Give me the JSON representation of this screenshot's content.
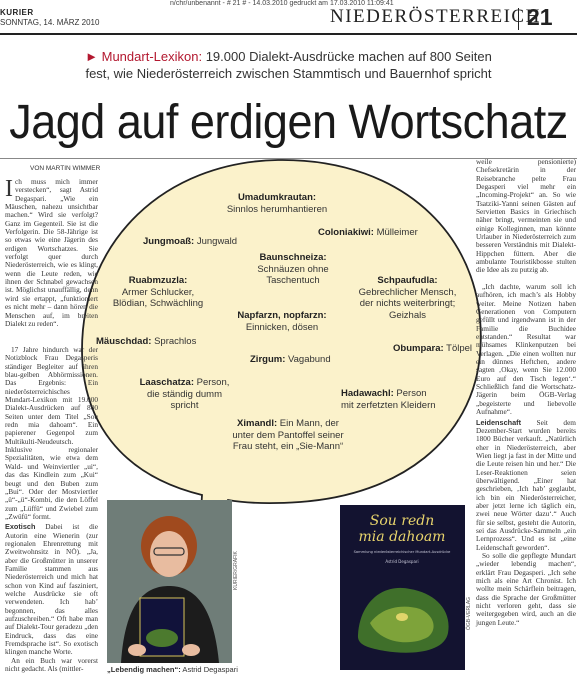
{
  "header": {
    "topline": "n/chr/unbenannt - # 21 # - 14.03.2010 gedruckt am 17.03.2010 11:09:41",
    "paper": "KURIER",
    "date": "SONNTAG, 14. MÄRZ 2010",
    "section": "NIEDERÖSTERREICH",
    "page": "21"
  },
  "kicker": {
    "arrow": "►",
    "keyword": "Mundart-Lexikon:",
    "line1_rest": " 19.000 Dialekt-Ausdrücke machen auf 800 Seiten",
    "line2": "fest, wie Niederösterreich zwischen Stammtisch und Bauernhof spricht"
  },
  "headline": "Jagd auf erdigen Wortschatz",
  "byline": "VON MARTIN WIMMER",
  "article": {
    "col1_drop": "I",
    "col1_text": "ch muss mich immer verstecken“, sagt Astrid Degaspari. „Wie ein Mäuschen, nahezu unsichtbar machen.“ Wird sie verfolgt? Ganz im Gegenteil. Sie ist die Verfolgerin. Die 58-Jährige ist so etwas wie eine Jägerin des erdigen Wortschatzes. Sie verfolgt quer durch Niederösterreich, wie es klingt, wenn die Leute reden, wie ihnen der Schnabel gewachsen ist. Möglichst unauffällig, denn wird sie ertappt, „funktioniert es nicht mehr – dann hören die Menschen auf, im breiten Dialekt zu reden“.",
    "col1b_text": "17 Jahre hindurch war der Notizblock Frau Degasperis ständiger Begleiter auf ihren blau-gelben Abhörmissionen. Das Ergebnis: Ein niederösterreichisches Mundart-Lexikon mit 19.000 Dialekt-Ausdrücken auf 800 Seiten unter dem Titel „Sou redn mia dahoam“. Ein papierener Gegenpol zum Multikulti-Neudeutsch. Inklusive regionaler Spezialitäten, wie etwa dem Wald- und Weinviertler „ui“, das das Kindlein zum „Kui“ beugt und den Buben zum „Bui“. Oder der Mostviertler „ü“-„ü“-Kombi, die den Löffel zum „Lüffü“ und Zwiebel zum „Zwüfü“ formt.",
    "col1c_lead": "Exotisch",
    "col1c_text": " Dabei ist die Autorin eine Wienerin (zur regionalen Ehrenrettung mit Zweitwohnsitz in NÖ). „Ja, aber die Großmütter in unserer Familie stammen aus Niederösterreich und mich hat schon von Kind auf fasziniert, welche Ausdrücke sie oft verwendeten. Ich hab’ begonnen, das alles aufzuschreiben.“ Oft habe man auf Dialekt-Tour geradezu „den Eindruck, dass das eine Fremdsprache ist“. So exotisch klingen manche Worte.",
    "col1d_text": "An ein Buch war vorerst nicht gedacht. Als (mittler-",
    "col3_text": "weile pensionierte) Chefsekretärin in der Reisebranche pelte Frau Degasperi viel mehr ein „Incoming-Projekt“ an. So wie Tsatziki-Yanni seinen Gästen auf Servietten Basics in Griechisch näher bringt, vermeinten sie und einige Kolleginnen, man könnte Urlauber in Niederösterreich zum besseren Verständnis mit Dialekt-Hippchen füttern. Aber die ambulante Touristikbosse stulten die Idee als zu putzig ab.",
    "col3b_text": "„Ich dachte, warum soll ich aufhören, ich mach’s als Hobby weiter. Meine Notizen haben Generationen von Computern gefüllt und irgendwann ist in der Familie die Buchidee entstanden.“ Resultat war mühsames Klinkenputzen bei Verlagen. „Die einen wollten nur ein dünnes Heftchen, andere sagten ‚Okay, wenn Sie 12.000 Euro auf den Tisch legen‘.“ Schließlich fand die Wortschatz-Jägerin beim ÖGB-Verlag „begeisterte und liebevolle Aufnahme“.",
    "col3c_lead": "Leidenschaft",
    "col3c_text": " Seit dem Dezember-Start wurden bereits 1800 Bücher verkauft. „Natürlich eher in Niederösterreich, aber Wien liegt ja fast in der Mitte und die Leute reisen hin und her.“ Die Leser-Reaktionen seien überwältigend. „Einer hat geschrieben, ‚Ich hab’ geglaubt, ich bin ein Niederösterreicher, aber jetzt lerne ich täglich ein, zwei neue Wörter dazu‘.“ Auch für sie selbst, gesteht die Autorin, sei das Ausdrücke-Sammeln „ein Lernprozess“. Und es ist „eine Leidenschaft geworden“.",
    "col3d_text": "So solle die gepflegte Mundart „wieder lebendig machen“, erklärt Frau Degasperi. „Ich sehe mich als eine Art Chronist. Ich wollte mein Schärflein beitragen, dass die Sprache der Großmütter nicht verloren geht, dass sie weitergegeben wird, auch an die jungen Leute.“"
  },
  "lexicon": [
    {
      "term": "Umadumkrautan:",
      "def": "Sinnlos herumhantieren"
    },
    {
      "term": "Jungmoaß:",
      "def": " Jungwald"
    },
    {
      "term": "Coloniakiwi:",
      "def": " Mülleimer"
    },
    {
      "term": "Baunschneiza:",
      "def": "Schnäuzen ohne Taschentuch"
    },
    {
      "term": "Ruabmzuzla:",
      "def": "Armer Schlucker, Blödian, Schwächling"
    },
    {
      "term": "Schpaufudla:",
      "def": "Gebrechlicher Mensch, der nichts weiterbringt; Geizhals"
    },
    {
      "term": "Napfarzn, nopfarzn:",
      "def": "Einnicken, dösen"
    },
    {
      "term": "Mäuschdad:",
      "def": " Sprachlos"
    },
    {
      "term": "Obumpara:",
      "def": " Tölpel"
    },
    {
      "term": "Zirgum:",
      "def": " Vagabund"
    },
    {
      "term": "Laaschatza:",
      "def": " Person, die ständig dumm spricht"
    },
    {
      "term": "Hadawachl:",
      "def": " Person mit zerfetzten Kleidern"
    },
    {
      "term": "Ximandl:",
      "def": " Ein Mann, der unter dem Pantoffel seiner Frau steht, ein „Sie-Mann“"
    }
  ],
  "photo_caption": {
    "lead": "„Lebendig machen“:",
    "rest": " Astrid Degaspari"
  },
  "credits": {
    "photo1": "KURIER/GRAFIK",
    "photo2": "ÖGB-VERLAG"
  },
  "book": {
    "title_line1": "Sou redn",
    "title_line2": "mia dahoam",
    "subtitle": "Sammlung niederösterreichischer Mundart-Ausdrücke",
    "author": "Astrid Degaspari"
  },
  "colors": {
    "accent": "#b3182f",
    "bubble": "#fbf2cb"
  }
}
